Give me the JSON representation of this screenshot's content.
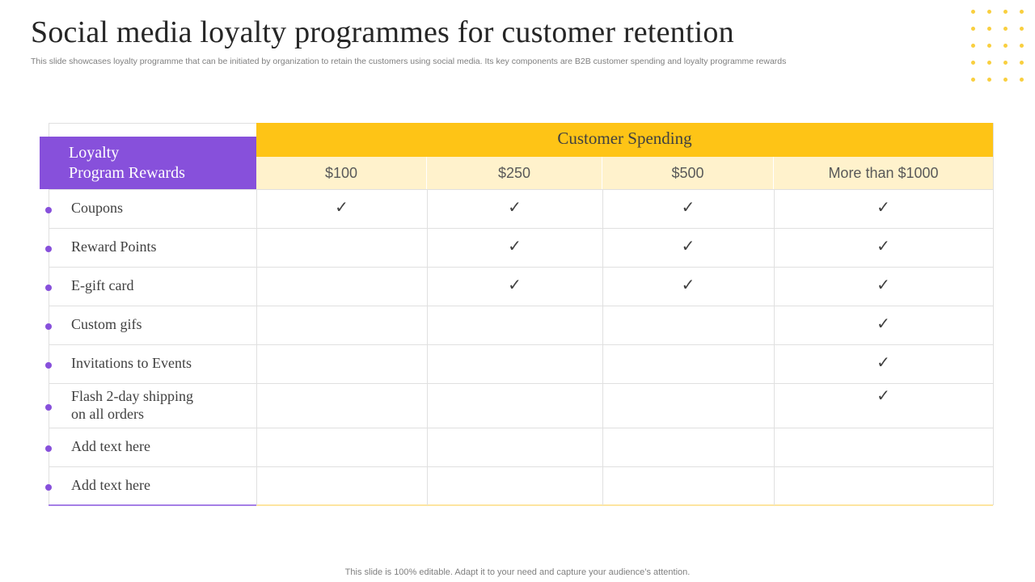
{
  "title": "Social media loyalty programmes for customer retention",
  "subtitle": "This slide showcases loyalty programme that can be initiated by organization to retain the customers using social media. Its key components are B2B customer spending and loyalty programme rewards",
  "footer": "This slide is 100% editable. Adapt it to your need and capture your audience’s attention.",
  "colors": {
    "purple": "#8750db",
    "yellow": "#fec416",
    "light_yellow": "#fff2cc"
  },
  "table": {
    "row_header": "Loyalty\nProgram Rewards",
    "group_header": "Customer Spending",
    "columns": [
      "$100",
      "$250",
      "$500",
      "More than $1000"
    ],
    "check_symbol": "✓",
    "rows": [
      {
        "label": "Coupons",
        "checks": [
          true,
          true,
          true,
          true
        ]
      },
      {
        "label": "Reward Points",
        "checks": [
          false,
          true,
          true,
          true
        ]
      },
      {
        "label": "E-gift card",
        "checks": [
          false,
          true,
          true,
          true
        ]
      },
      {
        "label": "Custom gifs",
        "checks": [
          false,
          false,
          false,
          true
        ]
      },
      {
        "label": "Invitations to Events",
        "checks": [
          false,
          false,
          false,
          true
        ]
      },
      {
        "label": "Flash 2-day shipping\non all orders",
        "checks": [
          false,
          false,
          false,
          true
        ]
      },
      {
        "label": "Add text here",
        "checks": [
          false,
          false,
          false,
          false
        ]
      },
      {
        "label": "Add text here",
        "checks": [
          false,
          false,
          false,
          false
        ]
      }
    ]
  }
}
